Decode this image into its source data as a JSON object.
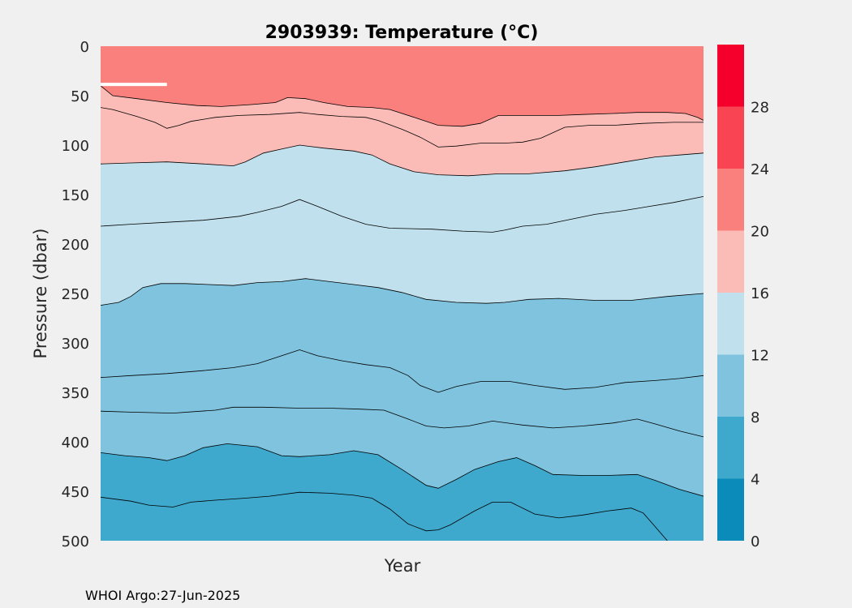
{
  "chart_data": {
    "type": "filled-contour",
    "title": "2903939:  Temperature (°C)",
    "xlabel": "Year",
    "ylabel": "Pressure (dbar)",
    "ylim": [
      0,
      500
    ],
    "y_reversed": true,
    "yticks": [
      0,
      50,
      100,
      150,
      200,
      250,
      300,
      350,
      400,
      450,
      500
    ],
    "x_domain": [
      0,
      1
    ],
    "colorbar": {
      "ticks": [
        0,
        4,
        8,
        12,
        16,
        20,
        24,
        28
      ],
      "range": [
        0,
        32
      ],
      "bands": [
        {
          "from": 0,
          "to": 4,
          "color": "#0a8bb9"
        },
        {
          "from": 4,
          "to": 8,
          "color": "#3ea8cd"
        },
        {
          "from": 8,
          "to": 12,
          "color": "#7fc3de"
        },
        {
          "from": 12,
          "to": 16,
          "color": "#c0e0ed"
        },
        {
          "from": 16,
          "to": 20,
          "color": "#fbbcb8"
        },
        {
          "from": 20,
          "to": 24,
          "color": "#f9807c"
        },
        {
          "from": 24,
          "to": 28,
          "color": "#f94454"
        },
        {
          "from": 28,
          "to": 32,
          "color": "#f5002d"
        }
      ]
    },
    "contours": [
      {
        "level": 20,
        "points": [
          [
            0.0,
            40
          ],
          [
            0.02,
            50
          ],
          [
            0.06,
            53
          ],
          [
            0.11,
            57
          ],
          [
            0.16,
            60
          ],
          [
            0.2,
            61
          ],
          [
            0.25,
            59
          ],
          [
            0.29,
            57
          ],
          [
            0.31,
            52
          ],
          [
            0.34,
            53
          ],
          [
            0.37,
            57
          ],
          [
            0.41,
            61
          ],
          [
            0.45,
            62
          ],
          [
            0.48,
            64
          ],
          [
            0.52,
            72
          ],
          [
            0.56,
            80
          ],
          [
            0.6,
            81
          ],
          [
            0.63,
            78
          ],
          [
            0.66,
            70
          ],
          [
            0.71,
            70
          ],
          [
            0.76,
            70
          ],
          [
            0.8,
            69
          ],
          [
            0.85,
            68
          ],
          [
            0.89,
            67
          ],
          [
            0.94,
            67
          ],
          [
            0.97,
            68
          ],
          [
            0.99,
            72
          ],
          [
            1.0,
            75
          ]
        ]
      },
      {
        "level": 18,
        "points": [
          [
            0.0,
            62
          ],
          [
            0.02,
            64
          ],
          [
            0.06,
            71
          ],
          [
            0.09,
            77
          ],
          [
            0.11,
            83
          ],
          [
            0.13,
            80
          ],
          [
            0.15,
            76
          ],
          [
            0.19,
            72
          ],
          [
            0.23,
            70
          ],
          [
            0.28,
            69
          ],
          [
            0.33,
            67
          ],
          [
            0.36,
            69
          ],
          [
            0.4,
            71
          ],
          [
            0.44,
            72
          ],
          [
            0.46,
            75
          ],
          [
            0.5,
            84
          ],
          [
            0.53,
            92
          ],
          [
            0.56,
            102
          ],
          [
            0.59,
            101
          ],
          [
            0.63,
            98
          ],
          [
            0.67,
            98
          ],
          [
            0.7,
            97
          ],
          [
            0.73,
            93
          ],
          [
            0.77,
            82
          ],
          [
            0.81,
            80
          ],
          [
            0.85,
            80
          ],
          [
            0.9,
            78
          ],
          [
            0.95,
            77
          ],
          [
            1.0,
            77
          ]
        ]
      },
      {
        "level": 16,
        "points": [
          [
            0.0,
            119
          ],
          [
            0.05,
            118
          ],
          [
            0.11,
            117
          ],
          [
            0.17,
            119
          ],
          [
            0.22,
            121
          ],
          [
            0.24,
            117
          ],
          [
            0.27,
            108
          ],
          [
            0.3,
            104
          ],
          [
            0.33,
            100
          ],
          [
            0.37,
            103
          ],
          [
            0.42,
            106
          ],
          [
            0.45,
            110
          ],
          [
            0.48,
            119
          ],
          [
            0.52,
            127
          ],
          [
            0.56,
            130
          ],
          [
            0.61,
            131
          ],
          [
            0.66,
            129
          ],
          [
            0.71,
            129
          ],
          [
            0.77,
            126
          ],
          [
            0.82,
            122
          ],
          [
            0.87,
            117
          ],
          [
            0.92,
            112
          ],
          [
            0.96,
            110
          ],
          [
            1.0,
            108
          ]
        ]
      },
      {
        "level": 14,
        "points": [
          [
            0.0,
            182
          ],
          [
            0.05,
            180
          ],
          [
            0.11,
            178
          ],
          [
            0.17,
            176
          ],
          [
            0.23,
            172
          ],
          [
            0.26,
            168
          ],
          [
            0.3,
            162
          ],
          [
            0.33,
            155
          ],
          [
            0.36,
            162
          ],
          [
            0.4,
            172
          ],
          [
            0.44,
            180
          ],
          [
            0.48,
            184
          ],
          [
            0.55,
            185
          ],
          [
            0.6,
            187
          ],
          [
            0.65,
            188
          ],
          [
            0.67,
            186
          ],
          [
            0.7,
            182
          ],
          [
            0.74,
            180
          ],
          [
            0.78,
            175
          ],
          [
            0.82,
            170
          ],
          [
            0.87,
            166
          ],
          [
            0.91,
            162
          ],
          [
            0.95,
            158
          ],
          [
            1.0,
            152
          ]
        ]
      },
      {
        "level": 12,
        "points": [
          [
            0.0,
            262
          ],
          [
            0.03,
            259
          ],
          [
            0.05,
            253
          ],
          [
            0.07,
            244
          ],
          [
            0.1,
            240
          ],
          [
            0.14,
            240
          ],
          [
            0.18,
            241
          ],
          [
            0.22,
            242
          ],
          [
            0.26,
            239
          ],
          [
            0.3,
            238
          ],
          [
            0.34,
            235
          ],
          [
            0.38,
            238
          ],
          [
            0.42,
            241
          ],
          [
            0.46,
            244
          ],
          [
            0.5,
            249
          ],
          [
            0.54,
            256
          ],
          [
            0.59,
            259
          ],
          [
            0.64,
            260
          ],
          [
            0.67,
            259
          ],
          [
            0.71,
            256
          ],
          [
            0.76,
            255
          ],
          [
            0.82,
            257
          ],
          [
            0.88,
            257
          ],
          [
            0.94,
            253
          ],
          [
            1.0,
            250
          ]
        ]
      },
      {
        "level": 10,
        "points": [
          [
            0.0,
            335
          ],
          [
            0.05,
            333
          ],
          [
            0.11,
            331
          ],
          [
            0.17,
            328
          ],
          [
            0.22,
            325
          ],
          [
            0.26,
            321
          ],
          [
            0.3,
            313
          ],
          [
            0.33,
            307
          ],
          [
            0.36,
            313
          ],
          [
            0.4,
            318
          ],
          [
            0.44,
            322
          ],
          [
            0.48,
            325
          ],
          [
            0.51,
            333
          ],
          [
            0.53,
            343
          ],
          [
            0.56,
            350
          ],
          [
            0.59,
            344
          ],
          [
            0.63,
            339
          ],
          [
            0.68,
            339
          ],
          [
            0.72,
            343
          ],
          [
            0.77,
            347
          ],
          [
            0.82,
            345
          ],
          [
            0.87,
            340
          ],
          [
            0.92,
            338
          ],
          [
            0.96,
            336
          ],
          [
            1.0,
            333
          ]
        ]
      },
      {
        "level": 9,
        "points": [
          [
            0.0,
            369
          ],
          [
            0.05,
            370
          ],
          [
            0.12,
            371
          ],
          [
            0.19,
            368
          ],
          [
            0.22,
            365
          ],
          [
            0.27,
            365
          ],
          [
            0.33,
            366
          ],
          [
            0.38,
            366
          ],
          [
            0.43,
            367
          ],
          [
            0.47,
            368
          ],
          [
            0.51,
            377
          ],
          [
            0.54,
            384
          ],
          [
            0.57,
            386
          ],
          [
            0.61,
            384
          ],
          [
            0.65,
            379
          ],
          [
            0.7,
            383
          ],
          [
            0.75,
            386
          ],
          [
            0.8,
            384
          ],
          [
            0.85,
            381
          ],
          [
            0.89,
            377
          ],
          [
            0.92,
            382
          ],
          [
            0.96,
            389
          ],
          [
            1.0,
            395
          ]
        ]
      },
      {
        "level": 8,
        "points": [
          [
            0.0,
            411
          ],
          [
            0.04,
            414
          ],
          [
            0.08,
            416
          ],
          [
            0.11,
            419
          ],
          [
            0.14,
            414
          ],
          [
            0.17,
            406
          ],
          [
            0.21,
            402
          ],
          [
            0.26,
            405
          ],
          [
            0.3,
            414
          ],
          [
            0.33,
            415
          ],
          [
            0.38,
            413
          ],
          [
            0.42,
            409
          ],
          [
            0.46,
            413
          ],
          [
            0.5,
            428
          ],
          [
            0.54,
            444
          ],
          [
            0.56,
            447
          ],
          [
            0.59,
            438
          ],
          [
            0.62,
            428
          ],
          [
            0.66,
            420
          ],
          [
            0.69,
            416
          ],
          [
            0.72,
            424
          ],
          [
            0.75,
            433
          ],
          [
            0.8,
            434
          ],
          [
            0.84,
            434
          ],
          [
            0.89,
            433
          ],
          [
            0.92,
            439
          ],
          [
            0.96,
            448
          ],
          [
            1.0,
            455
          ]
        ]
      },
      {
        "level": 6,
        "points": [
          [
            0.0,
            456
          ],
          [
            0.05,
            460
          ],
          [
            0.08,
            464
          ],
          [
            0.12,
            466
          ],
          [
            0.15,
            461
          ],
          [
            0.19,
            459
          ],
          [
            0.24,
            457
          ],
          [
            0.28,
            455
          ],
          [
            0.33,
            451
          ],
          [
            0.38,
            452
          ],
          [
            0.42,
            454
          ],
          [
            0.45,
            457
          ],
          [
            0.48,
            468
          ],
          [
            0.51,
            483
          ],
          [
            0.54,
            490
          ],
          [
            0.56,
            489
          ],
          [
            0.58,
            484
          ],
          [
            0.62,
            470
          ],
          [
            0.65,
            461
          ],
          [
            0.68,
            461
          ],
          [
            0.72,
            473
          ],
          [
            0.76,
            477
          ],
          [
            0.8,
            474
          ],
          [
            0.84,
            470
          ],
          [
            0.88,
            467
          ],
          [
            0.9,
            472
          ],
          [
            0.92,
            486
          ],
          [
            0.94,
            500
          ]
        ]
      }
    ]
  },
  "footer": "WHOI Argo:27-Jun-2025"
}
